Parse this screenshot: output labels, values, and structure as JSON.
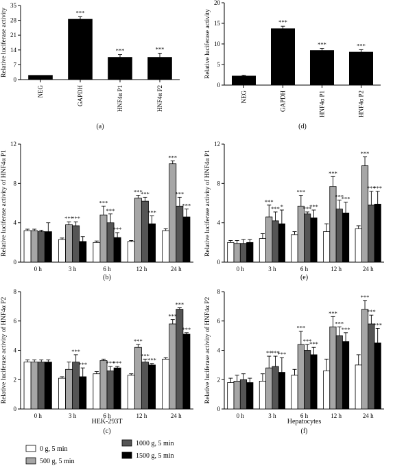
{
  "chart_data": [
    {
      "id": "a",
      "type": "bar",
      "panel_label": "(a)",
      "ylabel": "Relative luciferase activity",
      "xlabel": "",
      "ylim": [
        0,
        35
      ],
      "yticks": [
        0,
        7,
        14,
        21,
        28,
        35
      ],
      "categories": [
        "NEG",
        "GAPDH",
        "HNF4α P1",
        "HNF4α P2"
      ],
      "values": [
        2,
        28.5,
        10.5,
        10.5
      ],
      "errors": [
        0,
        1.2,
        1.3,
        2
      ],
      "annotations": [
        "",
        "***",
        "***",
        "***"
      ],
      "bar_color": "#000000"
    },
    {
      "id": "d",
      "type": "bar",
      "panel_label": "(d)",
      "ylabel": "Relative luciferase activity",
      "xlabel": "",
      "ylim": [
        0,
        20
      ],
      "yticks": [
        0,
        5,
        10,
        15,
        20
      ],
      "categories": [
        "NEG",
        "GAPDH",
        "HNF4α P1",
        "HNF4α P2"
      ],
      "values": [
        2.2,
        13.7,
        8.4,
        8
      ],
      "errors": [
        0.2,
        0.6,
        0.5,
        0.6
      ],
      "annotations": [
        "",
        "***",
        "***",
        "***"
      ],
      "bar_color": "#000000"
    },
    {
      "id": "b",
      "type": "bar",
      "panel_label": "(b)",
      "ylabel": "Relative luciferase activity of HNF4α P1",
      "xlabel": "",
      "ylim": [
        0,
        12
      ],
      "yticks": [
        0,
        4,
        8,
        12
      ],
      "categories": [
        "0 h",
        "3 h",
        "6 h",
        "12 h",
        "24 h"
      ],
      "series": [
        {
          "name": "0 g, 5 min",
          "values": [
            3.2,
            2.3,
            2.0,
            2.1,
            3.2
          ],
          "errors": [
            0.15,
            0.15,
            0.15,
            0.1,
            0.2
          ],
          "annotations": [
            "",
            "",
            "",
            "",
            ""
          ]
        },
        {
          "name": "500 g, 5 min",
          "values": [
            3.2,
            3.8,
            4.8,
            6.5,
            10.0
          ],
          "errors": [
            0.15,
            0.3,
            0.9,
            0.3,
            0.3
          ],
          "annotations": [
            "",
            "***",
            "***",
            "***",
            "***"
          ]
        },
        {
          "name": "1000 g, 5 min",
          "values": [
            3.1,
            3.7,
            4.0,
            6.2,
            5.7
          ],
          "errors": [
            0.15,
            0.4,
            0.9,
            0.4,
            0.9
          ],
          "annotations": [
            "",
            "***",
            "***",
            "***",
            "***"
          ]
        },
        {
          "name": "1500 g, 5 min",
          "values": [
            3.1,
            2.1,
            2.5,
            3.9,
            4.6
          ],
          "errors": [
            0.9,
            0.5,
            0.5,
            0.8,
            0.8
          ],
          "annotations": [
            "",
            "",
            "***",
            "***",
            "***"
          ]
        }
      ],
      "colors": [
        "#ffffff",
        "#a6a6a6",
        "#555555",
        "#000000"
      ]
    },
    {
      "id": "e",
      "type": "bar",
      "panel_label": "(e)",
      "ylabel": "Relative luciferase activity of HNF4α P1",
      "xlabel": "",
      "ylim": [
        0,
        12
      ],
      "yticks": [
        0,
        4,
        8,
        12
      ],
      "categories": [
        "0 h",
        "3 h",
        "6 h",
        "12 h",
        "24 h"
      ],
      "series": [
        {
          "name": "0 g, 5 min",
          "values": [
            2.0,
            2.4,
            2.8,
            3.1,
            3.4
          ],
          "errors": [
            0.2,
            0.5,
            0.3,
            0.8,
            0.3
          ],
          "annotations": [
            "",
            "",
            "",
            "",
            ""
          ]
        },
        {
          "name": "500 g, 5 min",
          "values": [
            1.9,
            4.6,
            5.7,
            7.7,
            9.8
          ],
          "errors": [
            0.3,
            1.2,
            1.1,
            1.0,
            0.9
          ],
          "annotations": [
            "",
            "***",
            "***",
            "***",
            "***"
          ]
        },
        {
          "name": "1000 g, 5 min",
          "values": [
            1.9,
            4.2,
            4.9,
            5.4,
            5.8
          ],
          "errors": [
            0.4,
            0.9,
            0.2,
            0.9,
            1.4
          ],
          "annotations": [
            "",
            "***",
            "***",
            "***",
            "***"
          ]
        },
        {
          "name": "1500 g, 5 min",
          "values": [
            2.0,
            3.9,
            4.5,
            5.0,
            5.9
          ],
          "errors": [
            0.3,
            1.4,
            0.8,
            1.1,
            1.3
          ],
          "annotations": [
            "",
            "*",
            "***",
            "***",
            "***"
          ]
        }
      ],
      "colors": [
        "#ffffff",
        "#a6a6a6",
        "#555555",
        "#000000"
      ]
    },
    {
      "id": "c",
      "type": "bar",
      "panel_label": "(c)",
      "ylabel": "Relative luciferase activity of HNF4α P2",
      "xlabel": "HEK-293T",
      "ylim": [
        0,
        8
      ],
      "yticks": [
        0,
        2,
        4,
        6,
        8
      ],
      "categories": [
        "0 h",
        "3 h",
        "6 h",
        "12 h",
        "24 h"
      ],
      "series": [
        {
          "name": "0 g, 5 min",
          "values": [
            3.2,
            2.1,
            2.4,
            2.3,
            3.4
          ],
          "errors": [
            0.15,
            0.1,
            0.15,
            0.1,
            0.1
          ],
          "annotations": [
            "",
            "",
            "",
            "",
            ""
          ]
        },
        {
          "name": "500 g, 5 min",
          "values": [
            3.2,
            2.7,
            3.3,
            4.2,
            5.8
          ],
          "errors": [
            0.15,
            0.5,
            0.1,
            0.2,
            0.3
          ],
          "annotations": [
            "",
            "",
            "",
            "***",
            "***"
          ]
        },
        {
          "name": "1000 g, 5 min",
          "values": [
            3.2,
            3.2,
            2.6,
            3.2,
            6.8
          ],
          "errors": [
            0.15,
            0.5,
            0.3,
            0.2,
            0.1
          ],
          "annotations": [
            "",
            "***",
            "***",
            "***",
            "***"
          ]
        },
        {
          "name": "1500 g, 5 min",
          "values": [
            3.2,
            2.2,
            2.8,
            3.0,
            5.1
          ],
          "errors": [
            0.15,
            0.6,
            0.1,
            0.1,
            0.1
          ],
          "annotations": [
            "",
            "***",
            "***",
            "***",
            "***"
          ]
        }
      ],
      "colors": [
        "#ffffff",
        "#a6a6a6",
        "#555555",
        "#000000"
      ]
    },
    {
      "id": "f",
      "type": "bar",
      "panel_label": "(f)",
      "ylabel": "Relative luciferase activity of HNF4α P2",
      "xlabel": "Hepatocytes",
      "ylim": [
        0,
        8
      ],
      "yticks": [
        0,
        2,
        4,
        6,
        8
      ],
      "categories": [
        "0 h",
        "3 h",
        "6 h",
        "12 h",
        "24 h"
      ],
      "series": [
        {
          "name": "0 g, 5 min",
          "values": [
            1.8,
            1.9,
            2.3,
            2.6,
            3.0
          ],
          "errors": [
            0.3,
            0.5,
            0.4,
            0.8,
            0.7
          ],
          "annotations": [
            "",
            "",
            "",
            "",
            ""
          ]
        },
        {
          "name": "500 g, 5 min",
          "values": [
            1.9,
            2.8,
            4.4,
            5.6,
            6.8
          ],
          "errors": [
            0.4,
            0.8,
            0.9,
            0.7,
            0.6
          ],
          "annotations": [
            "",
            "**",
            "***",
            "***",
            "***"
          ]
        },
        {
          "name": "1000 g, 5 min",
          "values": [
            2.0,
            2.9,
            4.0,
            5.0,
            5.8
          ],
          "errors": [
            0.4,
            0.7,
            0.4,
            0.6,
            0.6
          ],
          "annotations": [
            "",
            "***",
            "***",
            "***",
            "***"
          ]
        },
        {
          "name": "1500 g, 5 min",
          "values": [
            1.8,
            2.5,
            3.7,
            4.6,
            4.5
          ],
          "errors": [
            0.3,
            1.0,
            0.5,
            0.6,
            1.0
          ],
          "annotations": [
            "",
            "***",
            "***",
            "***",
            "***"
          ]
        }
      ],
      "colors": [
        "#ffffff",
        "#a6a6a6",
        "#555555",
        "#000000"
      ]
    }
  ],
  "legend": {
    "items": [
      {
        "label": "0 g, 5 min",
        "color": "#ffffff"
      },
      {
        "label": "500 g, 5 min",
        "color": "#a6a6a6"
      },
      {
        "label": "1000 g, 5 min",
        "color": "#555555"
      },
      {
        "label": "1500 g, 5 min",
        "color": "#000000"
      }
    ]
  }
}
